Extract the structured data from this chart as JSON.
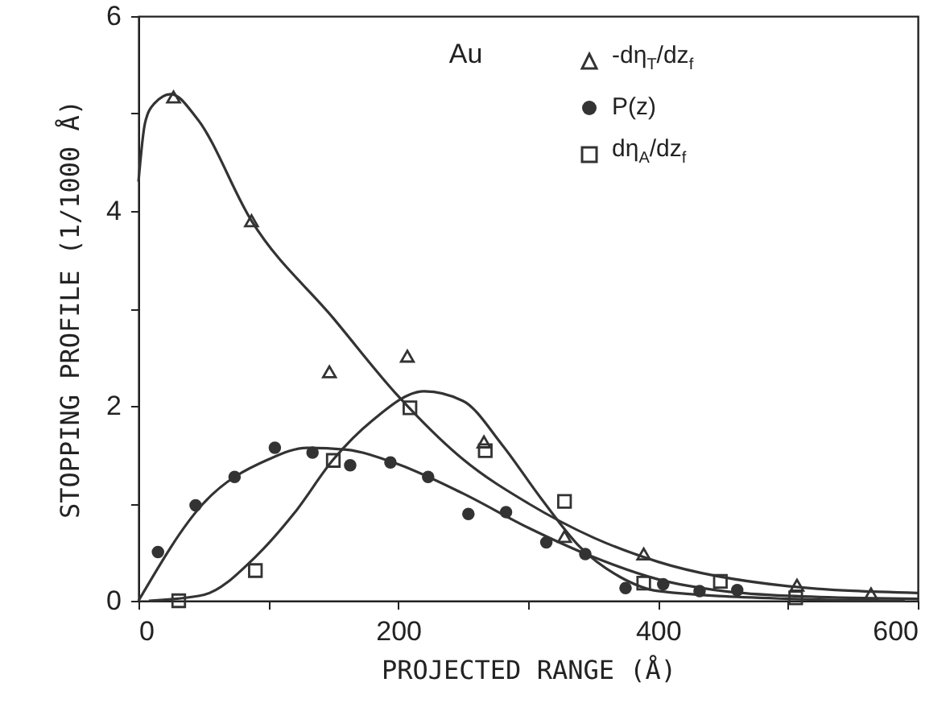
{
  "chart_data": {
    "type": "scatter",
    "xlabel": "PROJECTED RANGE (Å)",
    "ylabel": "STOPPING PROFILE (1/1000 Å)",
    "annotations": [
      "Au"
    ],
    "xlim": [
      0,
      600
    ],
    "xticks": [
      0,
      {
        "value": 100,
        "label": null
      },
      200,
      {
        "value": 300,
        "label": null
      },
      400,
      {
        "value": 500,
        "label": null
      },
      600
    ],
    "ylim": [
      0,
      6
    ],
    "yticks": [
      0,
      {
        "value": 1,
        "label": null
      },
      2,
      {
        "value": 3,
        "label": null
      },
      4,
      {
        "value": 5,
        "label": null
      },
      6
    ],
    "grid": false,
    "legend": "top right",
    "series": [
      {
        "name": "-dη$_{T}$/dz$_{f}$",
        "marker": "triangle",
        "color": "#333333",
        "x": [
          27,
          87,
          147,
          207,
          266,
          328,
          389,
          507,
          564
        ],
        "values": [
          5.17,
          3.9,
          2.35,
          2.51,
          1.63,
          0.66,
          0.48,
          0.16,
          0.07
        ]
      },
      {
        "name": "P(z)",
        "marker": "circle",
        "color": "#333333",
        "x": [
          15,
          44,
          74,
          105,
          134,
          163,
          194,
          223,
          254,
          283,
          314,
          344,
          375,
          404,
          432,
          461
        ],
        "values": [
          0.5,
          0.98,
          1.27,
          1.57,
          1.52,
          1.39,
          1.42,
          1.27,
          0.89,
          0.91,
          0.6,
          0.48,
          0.13,
          0.17,
          0.1,
          0.11
        ]
      },
      {
        "name": "dη$_{A}$/dz$_{f}$",
        "marker": "square",
        "color": "#333333",
        "x": [
          31,
          90,
          150,
          209,
          267,
          328,
          389,
          448,
          506
        ],
        "values": [
          0,
          0.31,
          1.44,
          1.98,
          1.54,
          1.02,
          0.18,
          0.2,
          0.03
        ]
      },
      {
        "type": "line",
        "marker": "none",
        "color": "#333333",
        "x": [
          0,
          5,
          12,
          25,
          45,
          87,
          150,
          200,
          250,
          300,
          350,
          400,
          500,
          600
        ],
        "values": [
          4.3,
          4.9,
          5.1,
          5.2,
          4.95,
          3.9,
          2.9,
          2.1,
          1.45,
          1.0,
          0.65,
          0.4,
          0.15,
          0.08
        ]
      },
      {
        "type": "line",
        "marker": "none",
        "color": "#333333",
        "x": [
          0,
          50,
          100,
          130,
          160,
          200,
          250,
          300,
          350,
          400,
          450,
          500,
          600
        ],
        "values": [
          0,
          1.0,
          1.45,
          1.57,
          1.55,
          1.4,
          1.1,
          0.75,
          0.45,
          0.22,
          0.1,
          0.05,
          0.02
        ]
      },
      {
        "type": "line",
        "marker": "none",
        "color": "#333333",
        "x": [
          8,
          50,
          90,
          120,
          150,
          180,
          220,
          250,
          280,
          310,
          340,
          370,
          400,
          500,
          590
        ],
        "values": [
          0,
          0.06,
          0.45,
          0.9,
          1.45,
          1.85,
          2.15,
          2.05,
          1.6,
          1.05,
          0.55,
          0.25,
          0.1,
          0.02,
          0
        ]
      }
    ]
  }
}
